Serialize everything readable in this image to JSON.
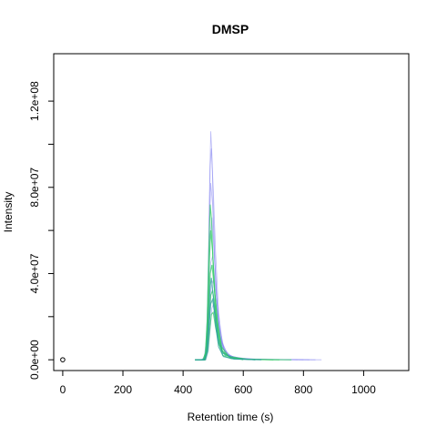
{
  "chart_data": {
    "type": "line",
    "title": "DMSP",
    "xlabel": "Retention time (s)",
    "ylabel": "Intensity",
    "xlim": [
      -30,
      1150
    ],
    "ylim": [
      -5000000,
      142000000
    ],
    "x_ticks": [
      0,
      200,
      400,
      600,
      800,
      1000
    ],
    "x_tick_labels": [
      "0",
      "200",
      "400",
      "600",
      "800",
      "1000"
    ],
    "y_ticks": [
      0,
      20000000,
      40000000,
      60000000,
      80000000,
      100000000,
      120000000
    ],
    "y_tick_labels": [
      "0.0e+00",
      "",
      "4.0e+07",
      "",
      "8.0e+07",
      "",
      "1.2e+08"
    ],
    "grid": false,
    "legend": "none",
    "series_colors": {
      "blue": "#7f7ff0",
      "green": "#33cc66",
      "teal": "#2a9d9d"
    },
    "marker_point": {
      "x": 0,
      "y": 0
    },
    "series": [
      {
        "color": "blue",
        "x": [
          440,
          460,
          470,
          478,
          484,
          488,
          492,
          496,
          500,
          506,
          514,
          524,
          540,
          570,
          620,
          700,
          860
        ],
        "y": [
          0,
          0,
          1000000,
          10000000,
          40000000,
          80000000,
          106000000,
          95000000,
          70000000,
          45000000,
          25000000,
          10000000,
          3000000,
          800000,
          300000,
          100000,
          0
        ]
      },
      {
        "color": "blue",
        "x": [
          440,
          465,
          474,
          480,
          486,
          490,
          494,
          500,
          508,
          518,
          530,
          550,
          600,
          680,
          840
        ],
        "y": [
          0,
          0,
          3000000,
          20000000,
          60000000,
          90000000,
          98000000,
          80000000,
          50000000,
          22000000,
          8000000,
          2000000,
          400000,
          100000,
          0
        ]
      },
      {
        "color": "blue",
        "x": [
          440,
          468,
          476,
          482,
          488,
          492,
          498,
          504,
          512,
          522,
          540,
          580,
          650,
          820
        ],
        "y": [
          0,
          0,
          4000000,
          25000000,
          65000000,
          82000000,
          72000000,
          50000000,
          28000000,
          12000000,
          3000000,
          600000,
          100000,
          0
        ]
      },
      {
        "color": "blue",
        "x": [
          440,
          470,
          478,
          484,
          490,
          496,
          502,
          510,
          520,
          536,
          560,
          620,
          800
        ],
        "y": [
          0,
          0,
          5000000,
          28000000,
          58000000,
          66000000,
          52000000,
          32000000,
          16000000,
          5000000,
          1500000,
          300000,
          0
        ]
      },
      {
        "color": "blue",
        "x": [
          440,
          472,
          480,
          486,
          492,
          498,
          506,
          516,
          528,
          548,
          600,
          780
        ],
        "y": [
          0,
          0,
          6000000,
          26000000,
          45000000,
          48000000,
          36000000,
          20000000,
          8000000,
          2000000,
          400000,
          0
        ]
      },
      {
        "color": "blue",
        "x": [
          440,
          474,
          482,
          488,
          494,
          500,
          508,
          518,
          532,
          560,
          640,
          760
        ],
        "y": [
          0,
          0,
          5000000,
          18000000,
          34000000,
          37000000,
          28000000,
          15000000,
          5000000,
          1200000,
          200000,
          0
        ]
      },
      {
        "color": "blue",
        "x": [
          440,
          476,
          484,
          490,
          496,
          502,
          510,
          522,
          540,
          580,
          700
        ],
        "y": [
          0,
          0,
          4000000,
          14000000,
          24000000,
          26000000,
          19000000,
          9000000,
          3000000,
          600000,
          0
        ]
      },
      {
        "color": "green",
        "x": [
          440,
          466,
          474,
          480,
          486,
          490,
          494,
          500,
          508,
          518,
          532,
          560,
          640,
          760
        ],
        "y": [
          0,
          0,
          3000000,
          18000000,
          52000000,
          72000000,
          66000000,
          44000000,
          22000000,
          8000000,
          2000000,
          500000,
          100000,
          0
        ]
      },
      {
        "color": "green",
        "x": [
          440,
          468,
          476,
          482,
          488,
          492,
          498,
          506,
          516,
          530,
          556,
          620,
          720
        ],
        "y": [
          0,
          0,
          4000000,
          20000000,
          48000000,
          60000000,
          50000000,
          30000000,
          14000000,
          4000000,
          1000000,
          200000,
          0
        ]
      },
      {
        "color": "green",
        "x": [
          440,
          470,
          478,
          484,
          490,
          496,
          504,
          514,
          528,
          552,
          610,
          700
        ],
        "y": [
          0,
          0,
          5000000,
          22000000,
          40000000,
          44000000,
          33000000,
          18000000,
          6000000,
          1500000,
          300000,
          0
        ]
      },
      {
        "color": "green",
        "x": [
          440,
          472,
          480,
          486,
          492,
          498,
          506,
          516,
          530,
          560,
          640
        ],
        "y": [
          0,
          0,
          5000000,
          18000000,
          30000000,
          32000000,
          24000000,
          12000000,
          4000000,
          800000,
          0
        ]
      },
      {
        "color": "green",
        "x": [
          440,
          474,
          482,
          488,
          494,
          500,
          508,
          520,
          540,
          600
        ],
        "y": [
          0,
          0,
          4000000,
          13000000,
          21000000,
          22000000,
          15000000,
          7000000,
          2000000,
          0
        ]
      },
      {
        "color": "teal",
        "x": [
          440,
          470,
          478,
          484,
          490,
          494,
          500,
          508,
          518,
          534,
          570,
          660
        ],
        "y": [
          0,
          0,
          3000000,
          16000000,
          34000000,
          38000000,
          30000000,
          16000000,
          6000000,
          1500000,
          300000,
          0
        ]
      },
      {
        "color": "teal",
        "x": [
          440,
          472,
          480,
          486,
          492,
          498,
          506,
          516,
          532,
          570,
          640
        ],
        "y": [
          0,
          0,
          4000000,
          14000000,
          26000000,
          28000000,
          20000000,
          10000000,
          3000000,
          500000,
          0
        ]
      }
    ]
  }
}
